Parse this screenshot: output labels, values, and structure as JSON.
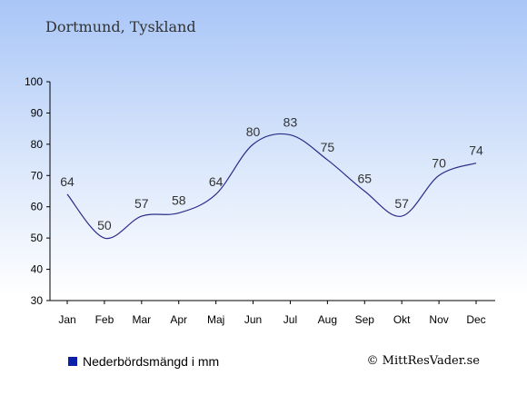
{
  "title": "Dortmund, Tyskland",
  "legend": {
    "label": "Nederbördsmängd i mm",
    "color": "#0b1fa8"
  },
  "copyright": "© MittResVader.se",
  "chart_data": {
    "type": "line",
    "categories": [
      "Jan",
      "Feb",
      "Mar",
      "Apr",
      "Maj",
      "Jun",
      "Jul",
      "Aug",
      "Sep",
      "Okt",
      "Nov",
      "Dec"
    ],
    "series": [
      {
        "name": "Nederbördsmängd i mm",
        "values": [
          64,
          50,
          57,
          58,
          64,
          80,
          83,
          75,
          65,
          57,
          70,
          74
        ],
        "color": "#2b2b8a"
      }
    ],
    "ylim": [
      30,
      100
    ],
    "yticks": [
      30,
      40,
      50,
      60,
      70,
      80,
      90,
      100
    ],
    "xlabel": "",
    "ylabel": "",
    "grid": false,
    "legend_position": "bottom-left"
  }
}
